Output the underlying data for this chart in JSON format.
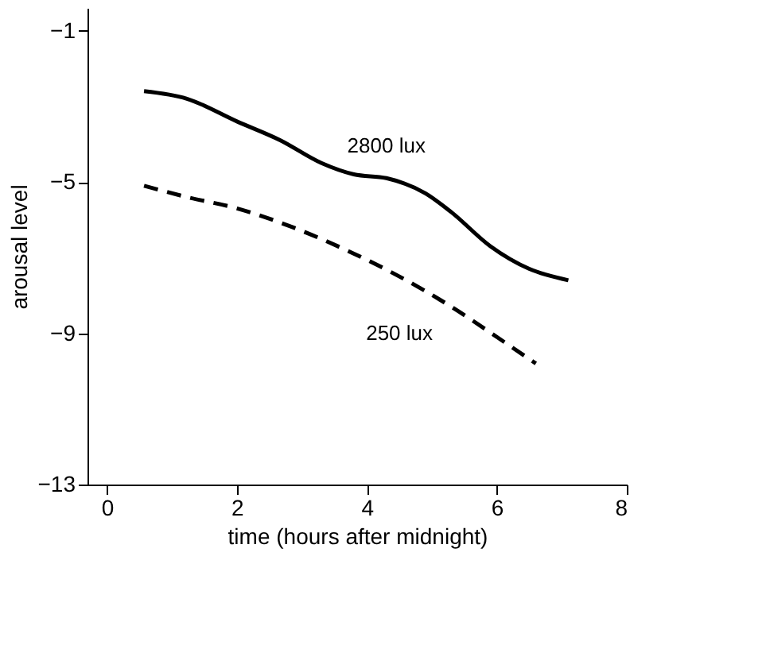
{
  "chart_data": {
    "type": "line",
    "xlabel": "time (hours after midnight)",
    "ylabel": "arousal level",
    "xlim": [
      -0.3,
      8
    ],
    "xticks": [
      0,
      2,
      4,
      6,
      8
    ],
    "ylim": [
      -13,
      -0.4
    ],
    "yticks": [
      -1,
      -5,
      -9,
      -13
    ],
    "grid": false,
    "marker": "none",
    "series": [
      {
        "name": "2800 lux",
        "color": "#000000",
        "line_style": "solid",
        "x": [
          0.57,
          1.23,
          2,
          2.67,
          3.3,
          3.8,
          4.3,
          4.9,
          5.3,
          5.9,
          6.5,
          7.1
        ],
        "values": [
          -2.6,
          -2.8,
          -3.4,
          -3.9,
          -4.5,
          -4.8,
          -4.9,
          -5.3,
          -5.8,
          -6.7,
          -7.3,
          -7.6
        ]
      },
      {
        "name": "250 lux",
        "color": "#000000",
        "line_style": "dashed",
        "x": [
          0.57,
          1.23,
          2,
          2.86,
          3.68,
          4.5,
          5.3,
          6,
          6.6
        ],
        "values": [
          -5.1,
          -5.4,
          -5.7,
          -6.2,
          -6.8,
          -7.5,
          -8.3,
          -9.1,
          -9.8
        ]
      }
    ]
  }
}
